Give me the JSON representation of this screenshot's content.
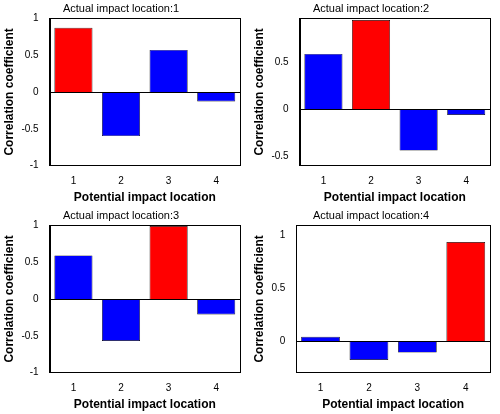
{
  "chart_data": [
    {
      "type": "bar",
      "title": "Actual impact location:1",
      "xlabel": "Potential impact location",
      "ylabel": "Correlation coefficient",
      "categories": [
        "1",
        "2",
        "3",
        "4"
      ],
      "values": [
        0.87,
        -0.6,
        0.57,
        -0.13
      ],
      "colors": [
        "#ff0000",
        "#0000ff",
        "#0000ff",
        "#0000ff"
      ],
      "ylim": [
        -1,
        1
      ],
      "yticks": [
        -1,
        -0.5,
        0,
        0.5,
        1
      ],
      "grid": false
    },
    {
      "type": "bar",
      "title": "Actual impact location:2",
      "xlabel": "Potential impact location",
      "ylabel": "Correlation coefficient",
      "categories": [
        "1",
        "2",
        "3",
        "4"
      ],
      "values": [
        0.59,
        0.95,
        -0.44,
        -0.06
      ],
      "colors": [
        "#0000ff",
        "#ff0000",
        "#0000ff",
        "#0000ff"
      ],
      "ylim": [
        -0.6,
        0.97
      ],
      "yticks": [
        -0.5,
        0,
        0.5
      ],
      "grid": false
    },
    {
      "type": "bar",
      "title": "Actual impact location:3",
      "xlabel": "Potential impact location",
      "ylabel": "Correlation coefficient",
      "categories": [
        "1",
        "2",
        "3",
        "4"
      ],
      "values": [
        0.59,
        -0.57,
        0.99,
        -0.21
      ],
      "colors": [
        "#0000ff",
        "#0000ff",
        "#ff0000",
        "#0000ff"
      ],
      "ylim": [
        -1,
        1
      ],
      "yticks": [
        -1,
        -0.5,
        0,
        0.5,
        1
      ],
      "grid": false
    },
    {
      "type": "bar",
      "title": "Actual impact location:4",
      "xlabel": "Potential impact location",
      "ylabel": "Correlation coefficient",
      "categories": [
        "1",
        "2",
        "3",
        "4"
      ],
      "values": [
        0.04,
        -0.18,
        -0.11,
        0.94
      ],
      "colors": [
        "#0000ff",
        "#0000ff",
        "#0000ff",
        "#ff0000"
      ],
      "ylim": [
        -0.3,
        1.1
      ],
      "yticks": [
        0,
        0.5,
        1
      ],
      "grid": false
    }
  ]
}
